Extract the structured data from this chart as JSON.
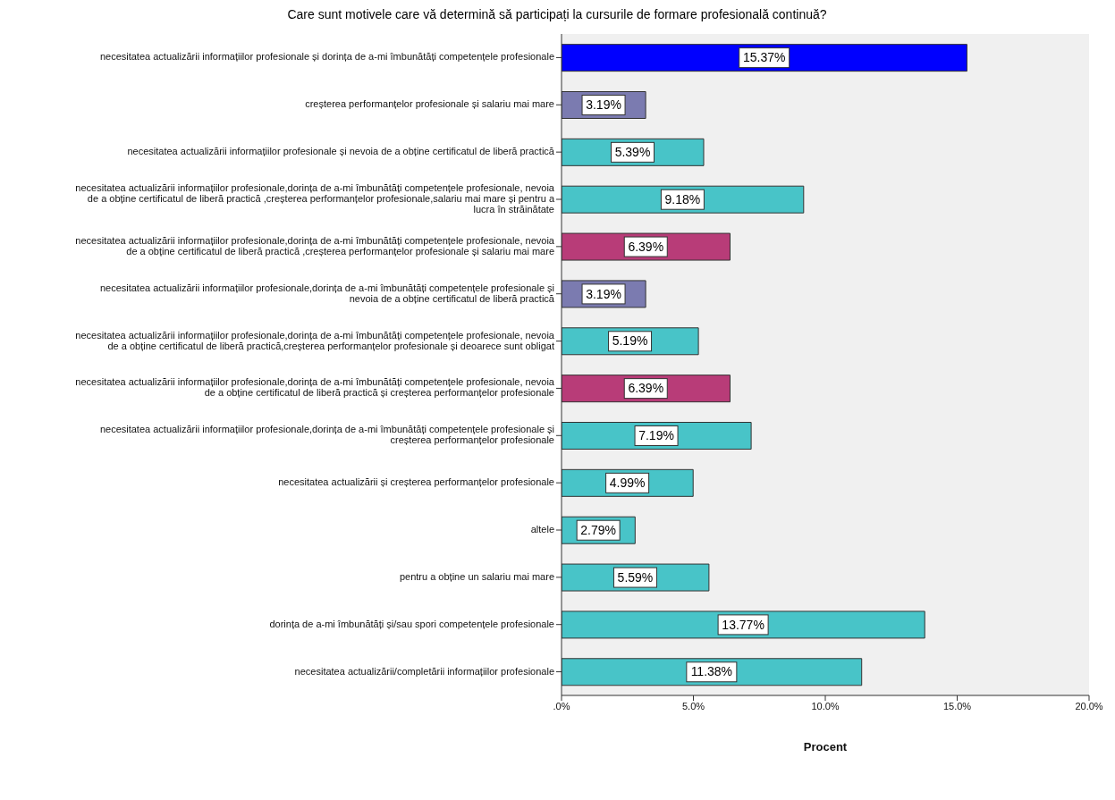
{
  "chart_data": {
    "type": "bar",
    "orientation": "horizontal",
    "title": "Care sunt motivele care vă determină să participați la cursurile de formare profesională continuă?",
    "xlabel": "Procent",
    "categories": [
      "necesitatea actualizării informațiilor profesionale și dorința de a-mi îmbunătăți competențele profesionale",
      "creșterea performanțelor profesionale și salariu mai mare",
      "necesitatea actualizării informațiilor profesionale și nevoia de a obține certificatul de liberă practică",
      "necesitatea actualizării informațiilor profesionale,dorința de a-mi îmbunătăți competențele profesionale, nevoia de a obține certificatul de liberă practică ,creșterea performanțelor profesionale,salariu mai mare și pentru a lucra în străinătate",
      "necesitatea actualizării informațiilor profesionale,dorința de a-mi îmbunătăți competențele profesionale, nevoia de a obține certificatul de liberă practică ,creșterea performanțelor profesionale și salariu mai mare",
      "necesitatea actualizării informațiilor profesionale,dorința de a-mi îmbunătăți competențele profesionale și nevoia de a obține certificatul de liberă practică",
      "necesitatea actualizării informațiilor profesionale,dorința de a-mi îmbunătăți competențele profesionale, nevoia de a obține certificatul de liberă practică,creșterea performanțelor profesionale și deoarece sunt obligat",
      "necesitatea actualizării informațiilor profesionale,dorința de a-mi îmbunătăți competențele profesionale, nevoia de a obține certificatul de liberă practică și creșterea performanțelor profesionale",
      "necesitatea actualizării informațiilor profesionale,dorința de a-mi îmbunătăți competențele profesionale și creșterea performanțelor profesionale",
      "necesitatea actualizării și creșterea performanțelor profesionale",
      "altele",
      "pentru a obține un salariu mai mare",
      "dorința de a-mi îmbunătăți și/sau spori competențele profesionale",
      "necesitatea actualizării/completării informațiilor profesionale"
    ],
    "values": [
      15.37,
      3.19,
      5.39,
      9.18,
      6.39,
      3.19,
      5.19,
      6.39,
      7.19,
      4.99,
      2.79,
      5.59,
      13.77,
      11.38
    ],
    "value_labels": [
      "15.37%",
      "3.19%",
      "5.39%",
      "9.18%",
      "6.39%",
      "3.19%",
      "5.19%",
      "6.39%",
      "7.19%",
      "4.99%",
      "2.79%",
      "5.59%",
      "13.77%",
      "11.38%"
    ],
    "colors": [
      "#0000ff",
      "#7b7bb0",
      "#48c4c8",
      "#48c4c8",
      "#b83c78",
      "#7b7bb0",
      "#48c4c8",
      "#b83c78",
      "#48c4c8",
      "#48c4c8",
      "#48c4c8",
      "#48c4c8",
      "#48c4c8",
      "#48c4c8"
    ],
    "xlim": [
      0,
      20
    ],
    "xticks": [
      {
        "value": 0,
        "label": ".0%"
      },
      {
        "value": 5,
        "label": "5.0%"
      },
      {
        "value": 10,
        "label": "10.0%"
      },
      {
        "value": 15,
        "label": "15.0%"
      },
      {
        "value": 20,
        "label": "20.0%"
      }
    ],
    "grid": false,
    "legend": false
  }
}
